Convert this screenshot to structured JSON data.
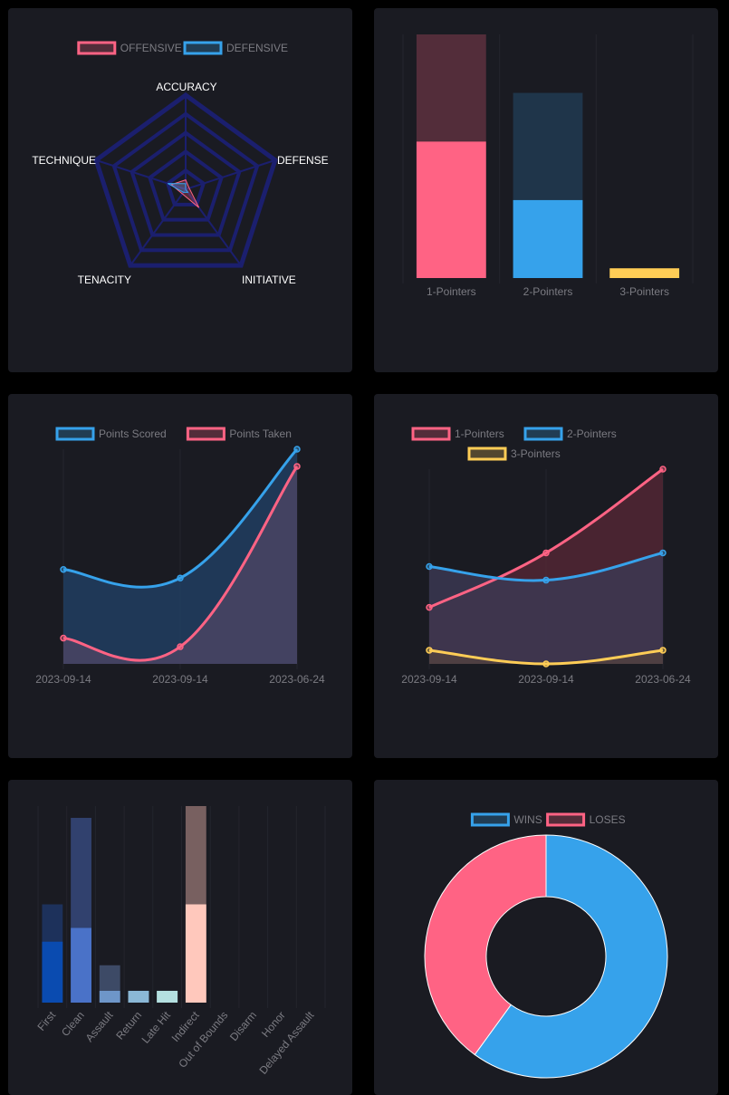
{
  "colors": {
    "card_bg": "#1a1b22",
    "red": "#ff6384",
    "blue": "#36a2eb",
    "yellow": "#ffcd56",
    "navy": "#1b1f6e",
    "grid": "#24252d",
    "text": "#7b7b82"
  },
  "chart_data": [
    {
      "type": "radar",
      "legend": [
        "OFFENSIVE",
        "DEFENSIVE"
      ],
      "labels": [
        "ACCURACY",
        "DEFENSE",
        "INITIATIVE",
        "TENACITY",
        "TECHNIQUE"
      ],
      "rmax": 5,
      "series": [
        {
          "name": "OFFENSIVE",
          "values": [
            0.5,
            0.2,
            1.2,
            0.3,
            0.8
          ]
        },
        {
          "name": "DEFENSIVE",
          "values": [
            0.3,
            0.0,
            0.2,
            0.2,
            1.0
          ]
        }
      ]
    },
    {
      "type": "bar",
      "categories": [
        "1-Pointers",
        "2-Pointers",
        "3-Pointers"
      ],
      "ylim": [
        0,
        100
      ],
      "values": [
        100,
        76,
        4
      ],
      "inner_values": [
        56,
        32,
        4
      ]
    },
    {
      "type": "area",
      "legend": [
        "Points Scored",
        "Points Taken"
      ],
      "x": [
        "2023-09-14",
        "2023-09-14",
        "2023-06-24"
      ],
      "ylim": [
        0,
        100
      ],
      "series": [
        {
          "name": "Points Scored",
          "values": [
            44,
            40,
            100
          ]
        },
        {
          "name": "Points Taken",
          "values": [
            12,
            8,
            92
          ]
        }
      ]
    },
    {
      "type": "area",
      "legend": [
        "1-Pointers",
        "2-Pointers",
        "3-Pointers"
      ],
      "x": [
        "2023-09-14",
        "2023-09-14",
        "2023-06-24"
      ],
      "ylim": [
        0,
        100
      ],
      "series": [
        {
          "name": "1-Pointers",
          "values": [
            29,
            57,
            100
          ]
        },
        {
          "name": "2-Pointers",
          "values": [
            50,
            43,
            57
          ]
        },
        {
          "name": "3-Pointers",
          "values": [
            7,
            0,
            7
          ]
        }
      ]
    },
    {
      "type": "bar",
      "categories": [
        "First",
        "Clean",
        "Assault",
        "Return",
        "Late Hit",
        "Indirect",
        "Out of Bounds",
        "Disarm",
        "Honor",
        "Delayed Assault"
      ],
      "ylim": [
        0,
        100
      ],
      "values": [
        50,
        94,
        19,
        6,
        6,
        100,
        0,
        0,
        0,
        0
      ],
      "inner_values": [
        31,
        38,
        6,
        6,
        6,
        50,
        0,
        0,
        0,
        0
      ]
    },
    {
      "type": "pie",
      "legend": [
        "WINS",
        "LOSES"
      ],
      "values": [
        60,
        40
      ]
    }
  ]
}
